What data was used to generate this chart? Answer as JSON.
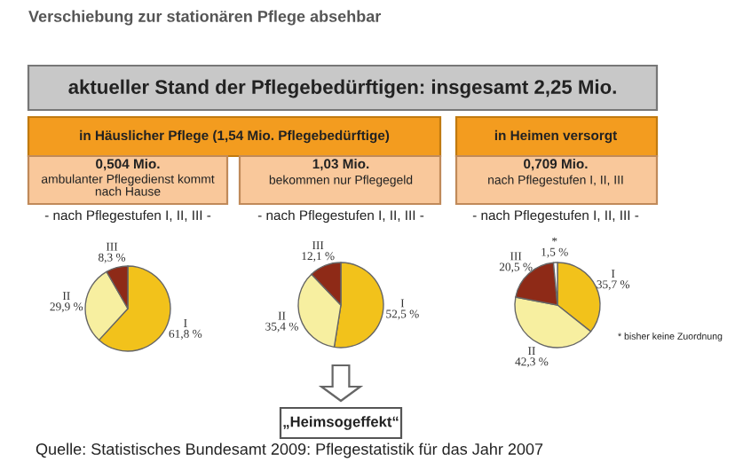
{
  "chart_data": [
    {
      "type": "pie",
      "title": "Verschiebung zur stationären Pflege absehbar",
      "categories": [
        "I",
        "II",
        "III"
      ],
      "values": [
        61.8,
        29.9,
        8.3
      ],
      "colors": [
        "#f2c21b",
        "#f7efa0",
        "#8e2a17"
      ],
      "value_labels": [
        "61,8 %",
        "29,9 %",
        "8,3 %"
      ],
      "annotations": [
        "aktueller Stand der Pflegebedürftigen: insgesamt 2,25 Mio.",
        "in Häuslicher Pflege (1,54 Mio. Pflegebedürftige)",
        "0,504 Mio.",
        "ambulanter Pflegedienst kommt\nnach Hause",
        "- nach Pflegestufen I, II, III -",
        "Quelle: Statistisches Bundesamt 2009: Pflegestatistik für das Jahr 2007"
      ]
    },
    {
      "type": "pie",
      "categories": [
        "I",
        "II",
        "III"
      ],
      "values": [
        52.5,
        35.4,
        12.1
      ],
      "colors": [
        "#f2c21b",
        "#f7efa0",
        "#8e2a17"
      ],
      "value_labels": [
        "52,5 %",
        "35,4 %",
        "12,1 %"
      ],
      "annotations": [
        "1,03 Mio.",
        "bekommen nur Pflegegeld",
        "- nach Pflegestufen I, II, III -",
        "„Heimsogeffekt“"
      ]
    },
    {
      "type": "pie",
      "categories": [
        "I",
        "II",
        "III",
        "*"
      ],
      "values": [
        35.7,
        42.3,
        20.5,
        1.5
      ],
      "colors": [
        "#f2c21b",
        "#f7efa0",
        "#8e2a17",
        "#ffffff"
      ],
      "value_labels": [
        "35,7 %",
        "42,3 %",
        "20,5 %",
        "1,5 %"
      ],
      "annotations": [
        "in Heimen versorgt",
        "0,709 Mio.",
        "nach Pflegestufen I, II, III",
        "- nach Pflegestufen I, II, III -",
        "* bisher keine Zuordnung"
      ]
    }
  ]
}
